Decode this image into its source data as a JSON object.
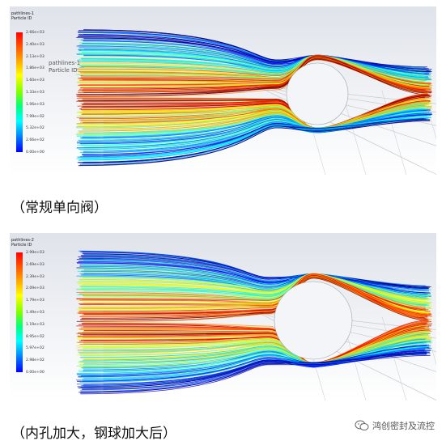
{
  "panels": [
    {
      "legend_title_line1": "pathlines-1",
      "legend_title_line2": "Particle ID",
      "overlay_line1": "pathlines-1",
      "overlay_line2": "Particle ID",
      "ticks": [
        "2.66e+03",
        "2.40e+03",
        "2.13e+03",
        "1.86e+03",
        "1.60e+03",
        "1.33e+03",
        "1.06e+03",
        "7.99e+02",
        "5.32e+02",
        "2.66e+02",
        "0.00e+00"
      ],
      "caption": "（常规单向阀）"
    },
    {
      "legend_title_line1": "pathlines-2",
      "legend_title_line2": "Particle ID",
      "ticks": [
        "2.99e+03",
        "2.69e+03",
        "2.39e+03",
        "2.09e+03",
        "1.79e+03",
        "1.49e+03",
        "1.19e+03",
        "8.95e+02",
        "5.97e+02",
        "2.98e+02",
        "0.00e+00"
      ],
      "caption": "（内孔加大，钢球加大后）"
    }
  ],
  "watermark": {
    "text": "鸿创密封及流控",
    "icon": "wechat-icon"
  }
}
